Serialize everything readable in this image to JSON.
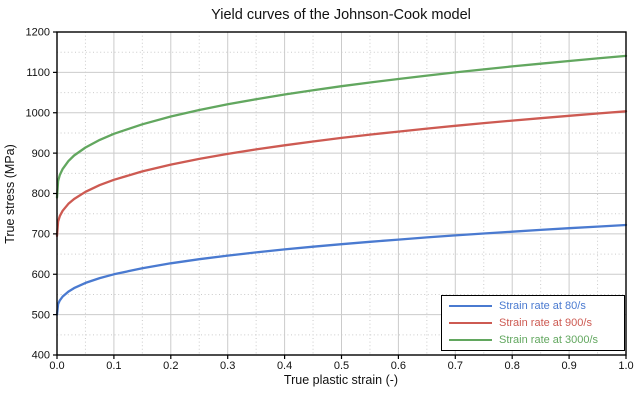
{
  "chart_data": {
    "type": "line",
    "title": "Yield curves of the Johnson-Cook model",
    "xlabel": "True plastic strain (-)",
    "ylabel": "True stress (MPa)",
    "xlim": [
      0.0,
      1.0
    ],
    "ylim": [
      400,
      1200
    ],
    "xtick_values": [
      0.0,
      0.1,
      0.2,
      0.3,
      0.4,
      0.5,
      0.6,
      0.7,
      0.8,
      0.9,
      1.0
    ],
    "xtick_labels": [
      "0.0",
      "0.1",
      "0.2",
      "0.3",
      "0.4",
      "0.5",
      "0.6",
      "0.7",
      "0.8",
      "0.9",
      "1.0"
    ],
    "ytick_values": [
      400,
      500,
      600,
      700,
      800,
      900,
      1000,
      1100,
      1200
    ],
    "ytick_labels": [
      "400",
      "500",
      "600",
      "700",
      "800",
      "900",
      "1000",
      "1100",
      "1200"
    ],
    "x_minor_step": 0.05,
    "y_minor_step": 50,
    "grid": {
      "major_style": "solid",
      "minor_style": "dotted",
      "color": "#cbcbcb"
    },
    "frame_color": "#000000",
    "background": "#ffffff",
    "legend_position": "lower right",
    "x": [
      0,
      0.002,
      0.005,
      0.01,
      0.02,
      0.03,
      0.05,
      0.075,
      0.1,
      0.15,
      0.2,
      0.25,
      0.3,
      0.35,
      0.4,
      0.45,
      0.5,
      0.55,
      0.6,
      0.65,
      0.7,
      0.75,
      0.8,
      0.85,
      0.9,
      0.95,
      1.0
    ],
    "series": [
      {
        "name": "Strain rate at 80/s",
        "color": "#4a7ad0",
        "values": [
          500.0,
          525.7,
          535.3,
          544.9,
          557.1,
          565.8,
          578.5,
          590.4,
          599.9,
          614.9,
          627.0,
          637.2,
          646.2,
          654.2,
          661.5,
          668.3,
          674.5,
          680.4,
          685.9,
          691.2,
          696.2,
          700.9,
          705.5,
          709.8,
          714.0,
          718.1,
          722.0
        ]
      },
      {
        "name": "Strain rate at 900/s",
        "color": "#cd5a52",
        "values": [
          695.0,
          730.7,
          744.1,
          757.4,
          774.4,
          786.5,
          804.1,
          820.7,
          833.9,
          854.7,
          871.5,
          885.7,
          898.2,
          909.3,
          919.5,
          928.9,
          937.6,
          945.8,
          953.4,
          960.8,
          967.7,
          974.3,
          980.6,
          986.6,
          992.5,
          998.2,
          1003.6
        ]
      },
      {
        "name": "Strain rate at 3000/s",
        "color": "#62a75f",
        "values": [
          790.0,
          830.6,
          845.8,
          861.0,
          880.2,
          894.0,
          914.0,
          932.8,
          947.8,
          971.5,
          990.7,
          1006.8,
          1021.0,
          1033.6,
          1045.2,
          1055.9,
          1065.7,
          1075.0,
          1083.7,
          1092.1,
          1100.0,
          1107.4,
          1114.7,
          1121.5,
          1128.1,
          1134.6,
          1140.8
        ]
      }
    ]
  }
}
